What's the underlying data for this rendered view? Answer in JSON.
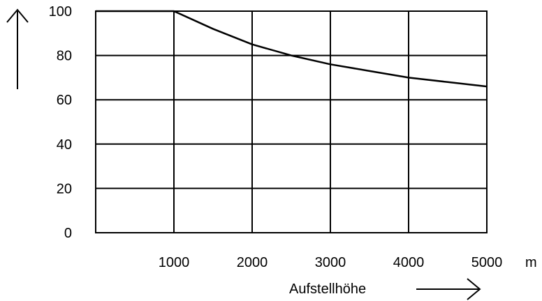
{
  "chart_data": {
    "type": "line",
    "title": "",
    "xlabel": "Aufstellhöhe",
    "xunit": "m",
    "ylabel": "",
    "xlim": [
      0,
      5000
    ],
    "ylim": [
      0,
      100
    ],
    "x_ticks": [
      0,
      1000,
      2000,
      3000,
      4000,
      5000
    ],
    "x_tick_labels": [
      "1000",
      "2000",
      "3000",
      "4000",
      "5000"
    ],
    "y_ticks": [
      0,
      20,
      40,
      60,
      80,
      100
    ],
    "y_tick_labels": [
      "0",
      "20",
      "40",
      "60",
      "80",
      "100"
    ],
    "grid": true,
    "series": [
      {
        "x": [
          0,
          1000,
          1500,
          2000,
          2500,
          3000,
          3500,
          4000,
          4500,
          5000
        ],
        "values": [
          100,
          100,
          92,
          85,
          80,
          76,
          73,
          70,
          68,
          66
        ]
      }
    ],
    "colors": {
      "line": "#000000",
      "grid": "#000000",
      "background": "#ffffff"
    }
  }
}
